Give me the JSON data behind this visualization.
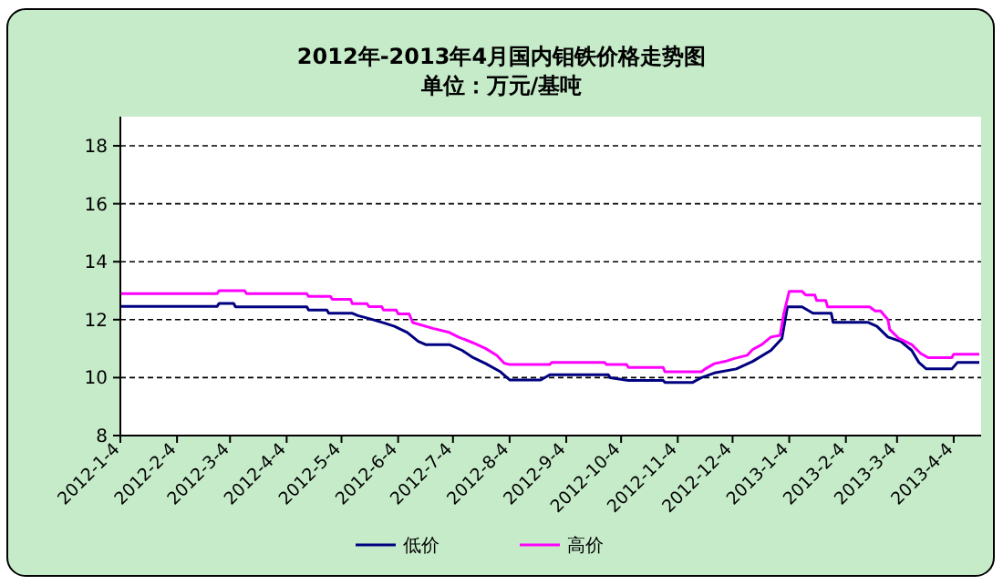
{
  "chart_data": {
    "type": "line",
    "title": "2012年-2013年4月国内钼铁价格走势图",
    "subtitle": "单位：万元/基吨",
    "xlim": [
      "2012-01-04",
      "2013-04-19"
    ],
    "ylim": [
      8,
      18
    ],
    "yticks": [
      8,
      10,
      12,
      14,
      16,
      18
    ],
    "xticks": [
      {
        "value": "2012-01-04",
        "label": "2012-1-4"
      },
      {
        "value": "2012-02-04",
        "label": "2012-2-4"
      },
      {
        "value": "2012-03-04",
        "label": "2012-3-4"
      },
      {
        "value": "2012-04-04",
        "label": "2012-4-4"
      },
      {
        "value": "2012-05-04",
        "label": "2012-5-4"
      },
      {
        "value": "2012-06-04",
        "label": "2012-6-4"
      },
      {
        "value": "2012-07-04",
        "label": "2012-7-4"
      },
      {
        "value": "2012-08-04",
        "label": "2012-8-4"
      },
      {
        "value": "2012-09-04",
        "label": "2012-9-4"
      },
      {
        "value": "2012-10-04",
        "label": "2012-10-4"
      },
      {
        "value": "2012-11-04",
        "label": "2012-11-4"
      },
      {
        "value": "2012-12-04",
        "label": "2012-12-4"
      },
      {
        "value": "2013-01-04",
        "label": "2013-1-4"
      },
      {
        "value": "2013-02-04",
        "label": "2013-2-4"
      },
      {
        "value": "2013-03-04",
        "label": "2013-3-4"
      },
      {
        "value": "2013-04-04",
        "label": "2013-4-4"
      }
    ],
    "grid": "y",
    "legend": "bottom",
    "marker": "none",
    "line_style": "solid",
    "series": [
      {
        "name": "低价",
        "color": "#000080",
        "x": [
          "2012-01-04",
          "2012-02-26",
          "2012-02-27",
          "2012-03-06",
          "2012-03-07",
          "2012-04-15",
          "2012-04-16",
          "2012-04-26",
          "2012-04-27",
          "2012-05-10",
          "2012-05-13",
          "2012-05-20",
          "2012-05-28",
          "2012-06-02",
          "2012-06-09",
          "2012-06-15",
          "2012-06-19",
          "2012-07-02",
          "2012-07-09",
          "2012-07-15",
          "2012-07-22",
          "2012-07-30",
          "2012-08-04",
          "2012-08-21",
          "2012-08-26",
          "2012-09-27",
          "2012-09-28",
          "2012-10-08",
          "2012-10-27",
          "2012-10-28",
          "2012-11-12",
          "2012-11-17",
          "2012-11-24",
          "2012-12-06",
          "2012-12-15",
          "2012-12-25",
          "2012-12-31",
          "2013-01-03",
          "2013-01-11",
          "2013-01-17",
          "2013-01-27",
          "2013-01-28",
          "2013-02-16",
          "2013-02-21",
          "2013-02-27",
          "2013-03-06",
          "2013-03-12",
          "2013-03-16",
          "2013-03-20",
          "2013-04-03",
          "2013-04-06",
          "2013-04-18"
        ],
        "values": [
          12.46,
          12.46,
          12.56,
          12.56,
          12.44,
          12.44,
          12.33,
          12.33,
          12.22,
          12.22,
          12.14,
          12.02,
          11.87,
          11.77,
          11.56,
          11.25,
          11.14,
          11.14,
          10.94,
          10.69,
          10.48,
          10.2,
          9.92,
          9.92,
          10.1,
          10.1,
          10.0,
          9.9,
          9.9,
          9.83,
          9.83,
          10.0,
          10.16,
          10.3,
          10.56,
          10.94,
          11.35,
          12.44,
          12.44,
          12.22,
          12.22,
          11.91,
          11.91,
          11.77,
          11.4,
          11.25,
          10.94,
          10.52,
          10.3,
          10.3,
          10.52,
          10.52
        ]
      },
      {
        "name": "高价",
        "color": "#ff00ff",
        "x": [
          "2012-01-04",
          "2012-02-26",
          "2012-02-27",
          "2012-03-12",
          "2012-03-13",
          "2012-04-15",
          "2012-04-16",
          "2012-04-28",
          "2012-04-29",
          "2012-05-09",
          "2012-05-10",
          "2012-05-18",
          "2012-05-19",
          "2012-05-26",
          "2012-05-27",
          "2012-06-03",
          "2012-06-04",
          "2012-06-10",
          "2012-06-12",
          "2012-06-23",
          "2012-07-02",
          "2012-07-07",
          "2012-07-15",
          "2012-07-22",
          "2012-07-28",
          "2012-08-01",
          "2012-08-04",
          "2012-08-26",
          "2012-08-27",
          "2012-09-25",
          "2012-09-26",
          "2012-10-07",
          "2012-10-08",
          "2012-10-27",
          "2012-10-28",
          "2012-11-17",
          "2012-11-19",
          "2012-11-24",
          "2012-11-30",
          "2012-12-05",
          "2012-12-12",
          "2012-12-15",
          "2012-12-20",
          "2012-12-25",
          "2012-12-30",
          "2013-01-01",
          "2013-01-04",
          "2013-01-11",
          "2013-01-13",
          "2013-01-18",
          "2013-01-19",
          "2013-01-24",
          "2013-01-25",
          "2013-02-17",
          "2013-02-20",
          "2013-02-23",
          "2013-02-27",
          "2013-02-28",
          "2013-03-05",
          "2013-03-12",
          "2013-03-17",
          "2013-03-21",
          "2013-04-03",
          "2013-04-04",
          "2013-04-18"
        ],
        "values": [
          12.9,
          12.9,
          13.0,
          13.0,
          12.9,
          12.9,
          12.8,
          12.8,
          12.7,
          12.7,
          12.55,
          12.55,
          12.45,
          12.45,
          12.33,
          12.33,
          12.2,
          12.2,
          11.9,
          11.7,
          11.56,
          11.4,
          11.2,
          11.0,
          10.77,
          10.5,
          10.45,
          10.45,
          10.52,
          10.52,
          10.45,
          10.45,
          10.35,
          10.35,
          10.2,
          10.2,
          10.3,
          10.48,
          10.56,
          10.66,
          10.77,
          10.97,
          11.14,
          11.4,
          11.46,
          12.2,
          12.98,
          12.98,
          12.85,
          12.85,
          12.66,
          12.66,
          12.44,
          12.44,
          12.3,
          12.3,
          12.0,
          11.66,
          11.35,
          11.14,
          10.83,
          10.69,
          10.69,
          10.81,
          10.81
        ]
      }
    ]
  }
}
